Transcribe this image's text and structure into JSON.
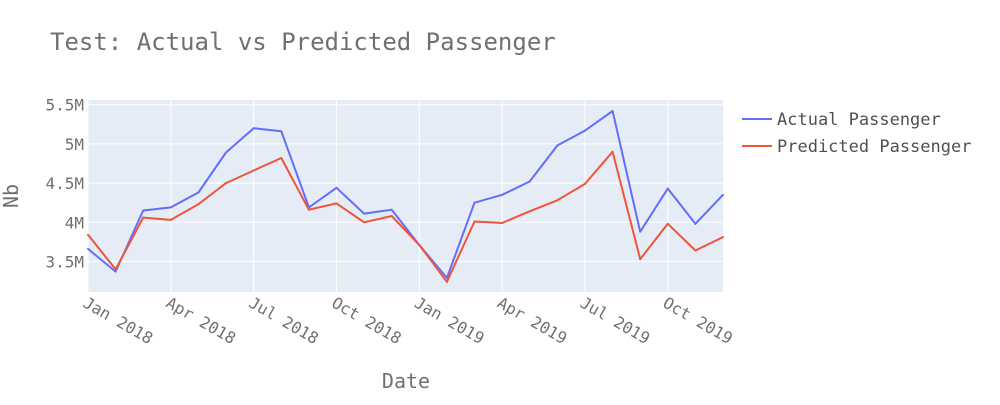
{
  "chart_data": {
    "type": "line",
    "title": "Test: Actual vs Predicted Passenger",
    "xlabel": "Date",
    "ylabel": "Nb",
    "x": [
      "2018-01",
      "2018-02",
      "2018-03",
      "2018-04",
      "2018-05",
      "2018-06",
      "2018-07",
      "2018-08",
      "2018-09",
      "2018-10",
      "2018-11",
      "2018-12",
      "2019-01",
      "2019-02",
      "2019-03",
      "2019-04",
      "2019-05",
      "2019-06",
      "2019-07",
      "2019-08",
      "2019-09",
      "2019-10",
      "2019-11",
      "2019-12"
    ],
    "series": [
      {
        "name": "Actual Passenger",
        "color": "#636efa",
        "values": [
          3.66,
          3.37,
          4.15,
          4.19,
          4.38,
          4.89,
          5.2,
          5.16,
          4.19,
          4.44,
          4.11,
          4.16,
          3.71,
          3.29,
          4.25,
          4.35,
          4.52,
          4.98,
          5.17,
          5.42,
          3.88,
          4.43,
          3.98,
          4.35
        ]
      },
      {
        "name": "Predicted Passenger",
        "color": "#ef553b",
        "values": [
          3.84,
          3.4,
          4.06,
          4.03,
          4.23,
          4.5,
          4.66,
          4.82,
          4.16,
          4.24,
          4.0,
          4.08,
          3.71,
          3.24,
          4.01,
          3.99,
          4.14,
          4.28,
          4.49,
          4.9,
          3.53,
          3.98,
          3.64,
          3.81
        ]
      }
    ],
    "value_unit": "M",
    "ylim": [
      3.11,
      5.56
    ],
    "y_ticks": [
      3.5,
      4,
      4.5,
      5,
      5.5
    ],
    "y_tick_labels": [
      "3.5M",
      "4M",
      "4.5M",
      "5M",
      "5.5M"
    ],
    "x_ticks": [
      "2018-01",
      "2018-04",
      "2018-07",
      "2018-10",
      "2019-01",
      "2019-04",
      "2019-07",
      "2019-10"
    ],
    "x_tick_labels": [
      "Jan 2018",
      "Apr 2018",
      "Jul 2018",
      "Oct 2018",
      "Jan 2019",
      "Apr 2019",
      "Jul 2019",
      "Oct 2019"
    ],
    "grid": true,
    "legend_position": "right",
    "plot_bg": "#e5ecf6"
  }
}
